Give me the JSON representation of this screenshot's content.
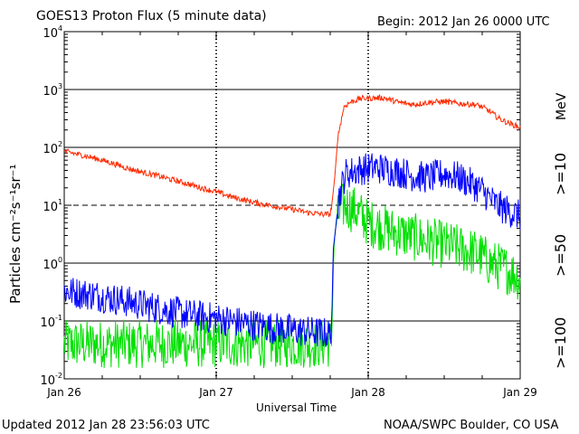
{
  "header": {
    "title": "GOES13 Proton Flux (5 minute data)",
    "begin": "Begin: 2012 Jan 26 0000 UTC"
  },
  "footer": {
    "updated": "Updated 2012 Jan 28 23:56:03 UTC",
    "credit": "NOAA/SWPC Boulder, CO USA"
  },
  "colors": {
    "ge10": "#ff2a00",
    "ge50": "#0000ff",
    "ge100": "#00e000",
    "grid": "#000000"
  },
  "chart_data": {
    "type": "line",
    "title": "GOES13 Proton Flux (5 minute data)",
    "xlabel": "Universal Time",
    "ylabel": "Particles cm⁻²s⁻¹sr⁻¹",
    "yscale": "log",
    "ylim": [
      0.01,
      10000
    ],
    "xlim": [
      0,
      3
    ],
    "x_unit": "days since 2012 Jan 26 0000 UTC",
    "x_ticks": [
      {
        "x": 0,
        "label": "Jan 26"
      },
      {
        "x": 1,
        "label": "Jan 27"
      },
      {
        "x": 2,
        "label": "Jan 28"
      },
      {
        "x": 3,
        "label": "Jan 29"
      }
    ],
    "y_ticks": [
      {
        "value": 10000,
        "base": "10",
        "exp": "4"
      },
      {
        "value": 1000,
        "base": "10",
        "exp": "3"
      },
      {
        "value": 100,
        "base": "10",
        "exp": "2"
      },
      {
        "value": 10,
        "base": "10",
        "exp": "1"
      },
      {
        "value": 1,
        "base": "10",
        "exp": "0"
      },
      {
        "value": 0.1,
        "base": "10",
        "exp": "-1"
      },
      {
        "value": 0.01,
        "base": "10",
        "exp": "-2"
      }
    ],
    "hlines": [
      {
        "value": 1000,
        "style": "solid"
      },
      {
        "value": 100,
        "style": "solid"
      },
      {
        "value": 10,
        "style": "dashed"
      },
      {
        "value": 1,
        "style": "solid"
      },
      {
        "value": 0.1,
        "style": "solid"
      }
    ],
    "legend": [
      {
        "text": "MeV",
        "series": "none"
      },
      {
        "text": ">=10",
        "series": ">=10 MeV"
      },
      {
        "text": ">=50",
        "series": ">=50 MeV"
      },
      {
        "text": ">=100",
        "series": ">=100 MeV"
      }
    ],
    "series": [
      {
        "name": ">=10 MeV",
        "color": "#ff2a00",
        "noise": 0.05,
        "points": [
          [
            0,
            85
          ],
          [
            0.1,
            75
          ],
          [
            0.2,
            65
          ],
          [
            0.3,
            55
          ],
          [
            0.4,
            45
          ],
          [
            0.5,
            38
          ],
          [
            0.6,
            33
          ],
          [
            0.7,
            28
          ],
          [
            0.8,
            24
          ],
          [
            0.9,
            20
          ],
          [
            1.0,
            17
          ],
          [
            1.1,
            14
          ],
          [
            1.2,
            12
          ],
          [
            1.3,
            10.5
          ],
          [
            1.4,
            9.5
          ],
          [
            1.5,
            8.5
          ],
          [
            1.6,
            7.5
          ],
          [
            1.7,
            7
          ],
          [
            1.75,
            7
          ],
          [
            1.76,
            10
          ],
          [
            1.78,
            30
          ],
          [
            1.8,
            150
          ],
          [
            1.84,
            500
          ],
          [
            1.88,
            600
          ],
          [
            1.95,
            700
          ],
          [
            2.1,
            720
          ],
          [
            2.2,
            600
          ],
          [
            2.3,
            550
          ],
          [
            2.4,
            600
          ],
          [
            2.5,
            620
          ],
          [
            2.6,
            570
          ],
          [
            2.7,
            550
          ],
          [
            2.75,
            500
          ],
          [
            2.8,
            420
          ],
          [
            2.85,
            330
          ],
          [
            2.9,
            280
          ],
          [
            3.0,
            220
          ]
        ]
      },
      {
        "name": ">=50 MeV",
        "color": "#0000ff",
        "noise": 0.28,
        "points": [
          [
            0,
            0.33
          ],
          [
            0.2,
            0.28
          ],
          [
            0.4,
            0.22
          ],
          [
            0.6,
            0.17
          ],
          [
            0.8,
            0.13
          ],
          [
            1.0,
            0.11
          ],
          [
            1.2,
            0.09
          ],
          [
            1.4,
            0.075
          ],
          [
            1.6,
            0.065
          ],
          [
            1.75,
            0.06
          ],
          [
            1.76,
            0.1
          ],
          [
            1.77,
            1.5
          ],
          [
            1.79,
            6
          ],
          [
            1.81,
            15
          ],
          [
            1.85,
            35
          ],
          [
            1.95,
            42
          ],
          [
            2.05,
            45
          ],
          [
            2.2,
            38
          ],
          [
            2.3,
            32
          ],
          [
            2.4,
            30
          ],
          [
            2.5,
            35
          ],
          [
            2.6,
            30
          ],
          [
            2.7,
            22
          ],
          [
            2.75,
            18
          ],
          [
            2.8,
            13
          ],
          [
            2.85,
            10
          ],
          [
            2.9,
            8.5
          ],
          [
            3.0,
            6.5
          ]
        ]
      },
      {
        "name": ">=100 MeV",
        "color": "#00e000",
        "noise": 0.42,
        "points": [
          [
            0,
            0.04
          ],
          [
            0.3,
            0.04
          ],
          [
            0.6,
            0.04
          ],
          [
            0.9,
            0.04
          ],
          [
            1.2,
            0.04
          ],
          [
            1.5,
            0.04
          ],
          [
            1.75,
            0.04
          ],
          [
            1.76,
            0.05
          ],
          [
            1.765,
            0.2
          ],
          [
            1.775,
            2
          ],
          [
            1.79,
            5
          ],
          [
            1.82,
            9
          ],
          [
            1.85,
            10
          ],
          [
            1.92,
            8
          ],
          [
            2.0,
            5
          ],
          [
            2.2,
            3.3
          ],
          [
            2.4,
            2.4
          ],
          [
            2.6,
            1.8
          ],
          [
            2.7,
            1.5
          ],
          [
            2.75,
            1.3
          ],
          [
            2.8,
            1.0
          ],
          [
            2.9,
            0.8
          ],
          [
            3.0,
            0.55
          ]
        ]
      }
    ]
  }
}
